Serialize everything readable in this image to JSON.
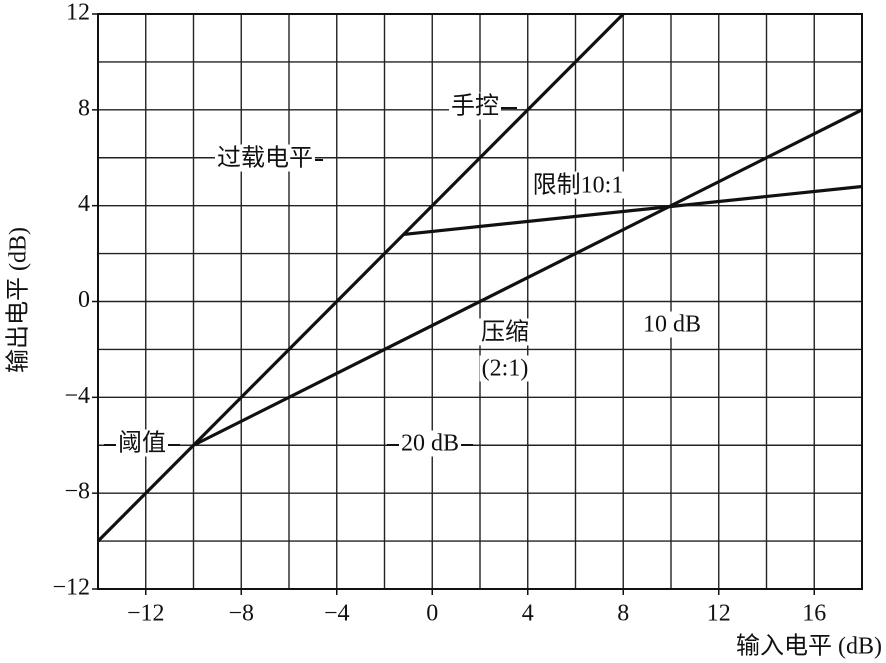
{
  "chart_data": {
    "type": "line",
    "x_label": "输入电平 (dB)",
    "y_label": "输出电平 (dB)",
    "xlim": [
      -14,
      18
    ],
    "ylim": [
      -12,
      12
    ],
    "xticks": [
      {
        "value": -12,
        "label": "−12"
      },
      {
        "value": -8,
        "label": "−8"
      },
      {
        "value": -4,
        "label": "−4"
      },
      0,
      4,
      8,
      12,
      16
    ],
    "yticks": [
      {
        "value": -12,
        "label": "−12"
      },
      {
        "value": -8,
        "label": "−8"
      },
      {
        "value": -4,
        "label": "−4"
      },
      0,
      4,
      8,
      12
    ],
    "grid": true,
    "grid_step": 2,
    "series": [
      {
        "color": "#111111",
        "x": [
          -14,
          8
        ],
        "values": [
          -10,
          12
        ]
      },
      {
        "color": "#111111",
        "x": [
          -10,
          18
        ],
        "values": [
          -6,
          8
        ]
      },
      {
        "color": "#111111",
        "x": [
          -1.2,
          18
        ],
        "values": [
          2.8,
          4.8
        ]
      }
    ],
    "annotations": [
      "手控",
      "过载电平",
      "限制10:1",
      "压缩",
      "(2:1)",
      "10 dB",
      "20 dB",
      "阈值"
    ]
  }
}
